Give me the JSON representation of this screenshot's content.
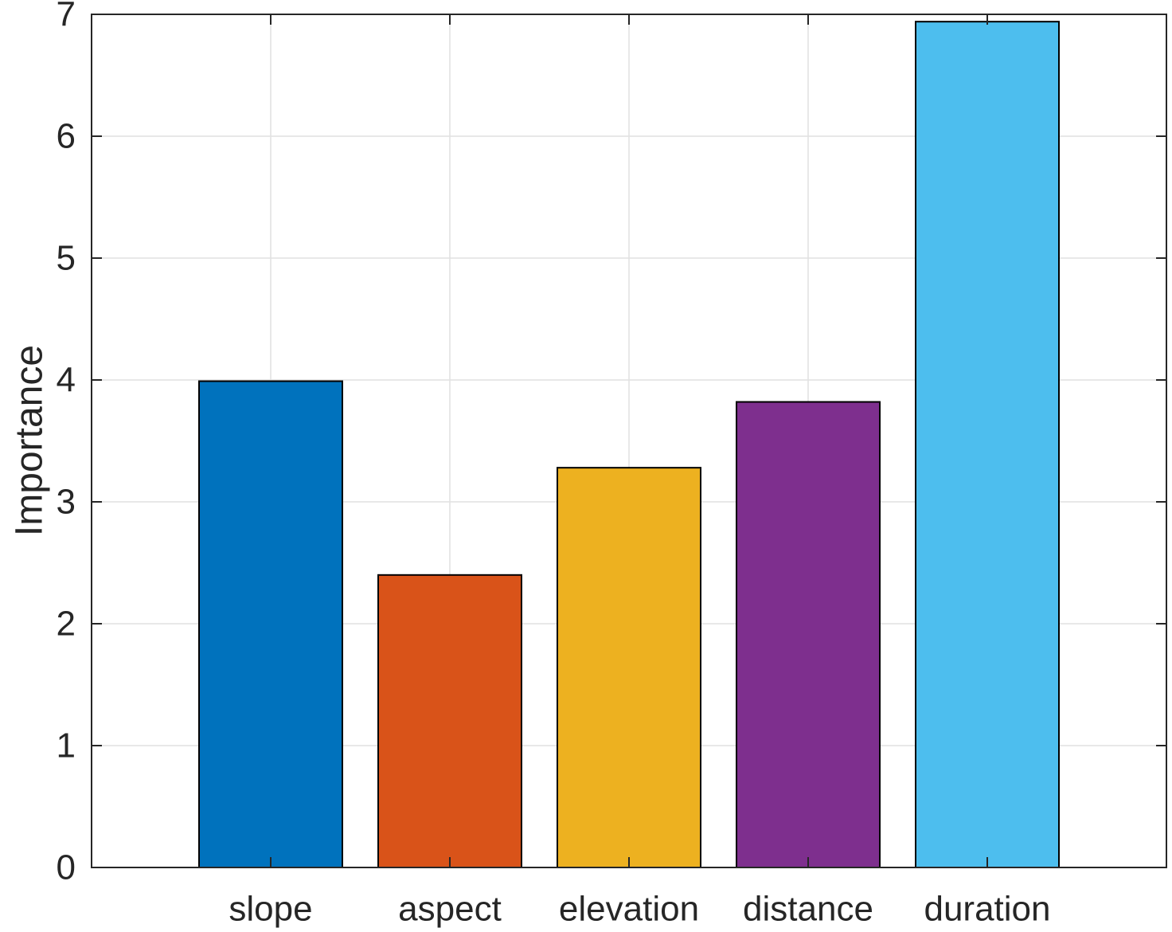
{
  "chart_data": {
    "type": "bar",
    "title": "",
    "xlabel": "",
    "ylabel": "Importance",
    "categories": [
      "slope",
      "aspect",
      "elevation",
      "distance",
      "duration"
    ],
    "values": [
      3.99,
      2.4,
      3.28,
      3.82,
      6.94
    ],
    "colors": [
      "#0072BD",
      "#D95319",
      "#EDB120",
      "#7E2F8E",
      "#4DBEEE"
    ],
    "ylim": [
      0,
      7
    ],
    "yticks": [
      0,
      1,
      2,
      3,
      4,
      5,
      6,
      7
    ],
    "xlim": [
      0,
      6
    ],
    "grid": true,
    "legend": "none",
    "colors_meta": {
      "axis": "#262626",
      "grid": "#e1e1e1",
      "bar_edge": "#000000",
      "background": "#ffffff"
    }
  }
}
